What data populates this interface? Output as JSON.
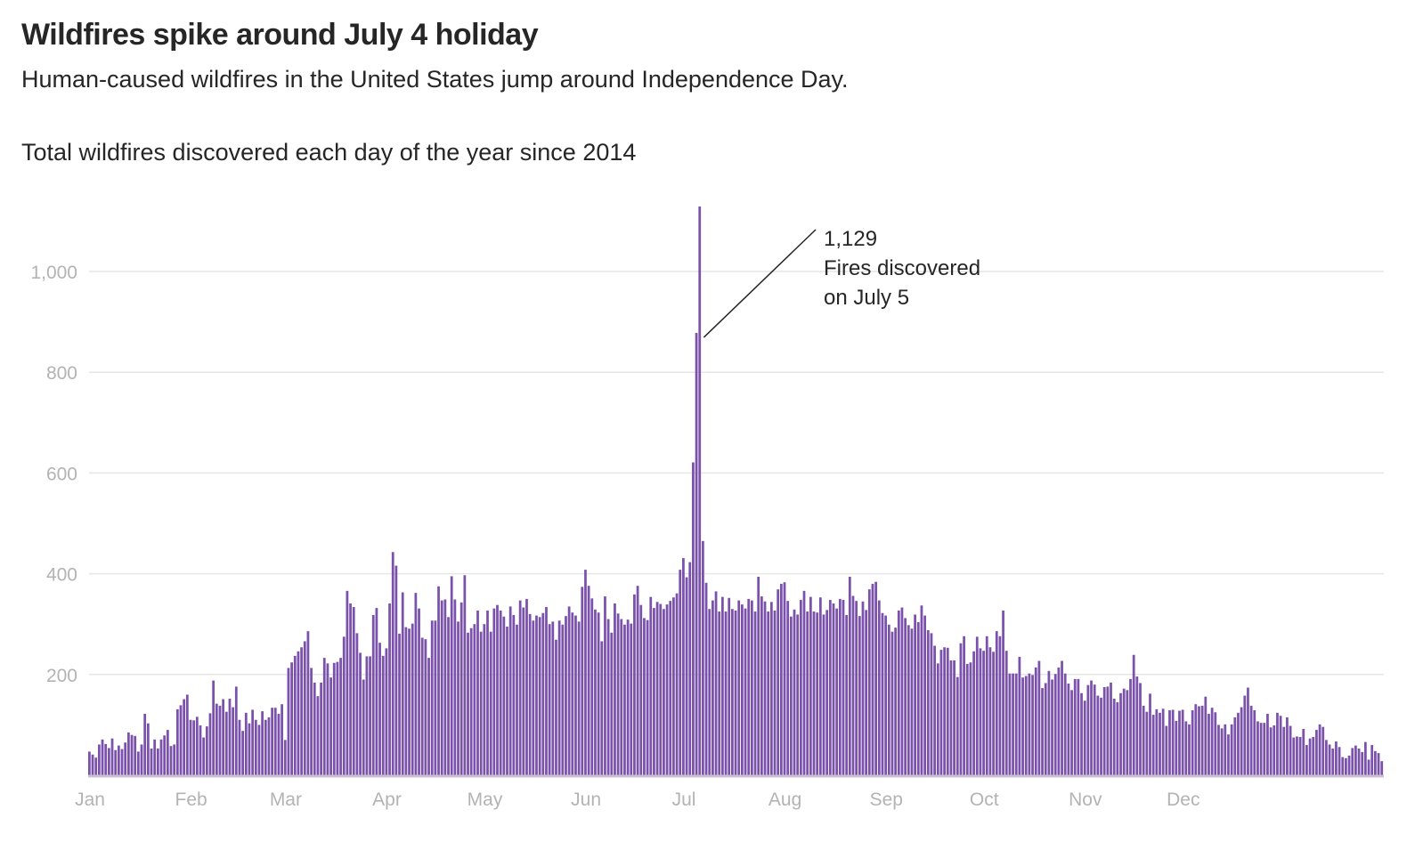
{
  "header": {
    "title": "Wildfires spike around July 4 holiday",
    "subtitle": "Human-caused wildfires in the United States jump around Independence Day."
  },
  "chart_data": {
    "type": "bar",
    "title": "Total wildfires discovered each day of the year since 2014",
    "xlabel": "",
    "ylabel": "",
    "ylim": [
      0,
      1129
    ],
    "y_ticks": [
      {
        "value": 200,
        "label": "200"
      },
      {
        "value": 400,
        "label": "400"
      },
      {
        "value": 600,
        "label": "600"
      },
      {
        "value": 800,
        "label": "800"
      },
      {
        "value": 1000,
        "label": "1,000"
      }
    ],
    "x_ticks": [
      {
        "day": 1,
        "label": "Jan"
      },
      {
        "day": 32,
        "label": "Feb"
      },
      {
        "day": 61,
        "label": "Mar"
      },
      {
        "day": 92,
        "label": "Apr"
      },
      {
        "day": 122,
        "label": "May"
      },
      {
        "day": 153,
        "label": "Jun"
      },
      {
        "day": 183,
        "label": "Jul"
      },
      {
        "day": 214,
        "label": "Aug"
      },
      {
        "day": 245,
        "label": "Sep"
      },
      {
        "day": 275,
        "label": "Oct"
      },
      {
        "day": 306,
        "label": "Nov"
      },
      {
        "day": 336,
        "label": "Dec"
      }
    ],
    "grid": true,
    "color": "#7b52ab",
    "annotation": {
      "day": 187,
      "value_label": "1,129",
      "line1": "Fires discovered",
      "line2": "on July 5"
    },
    "values": [
      47,
      41,
      35,
      61,
      71,
      62,
      54,
      73,
      50,
      59,
      52,
      65,
      85,
      80,
      78,
      47,
      61,
      122,
      103,
      53,
      71,
      53,
      71,
      79,
      90,
      58,
      61,
      131,
      139,
      151,
      160,
      110,
      109,
      116,
      99,
      75,
      97,
      123,
      188,
      142,
      138,
      151,
      126,
      152,
      135,
      176,
      110,
      88,
      124,
      103,
      130,
      110,
      100,
      127,
      110,
      115,
      134,
      134,
      122,
      141,
      70,
      213,
      224,
      237,
      246,
      254,
      266,
      286,
      213,
      184,
      157,
      184,
      233,
      222,
      194,
      223,
      225,
      233,
      275,
      366,
      341,
      334,
      282,
      243,
      190,
      236,
      236,
      318,
      332,
      263,
      237,
      252,
      341,
      443,
      416,
      281,
      363,
      294,
      291,
      301,
      362,
      331,
      273,
      270,
      233,
      307,
      307,
      375,
      347,
      349,
      314,
      395,
      349,
      305,
      343,
      397,
      283,
      292,
      300,
      327,
      285,
      300,
      327,
      285,
      331,
      338,
      327,
      315,
      295,
      335,
      318,
      299,
      347,
      333,
      350,
      320,
      307,
      317,
      314,
      322,
      334,
      300,
      305,
      269,
      307,
      299,
      316,
      335,
      323,
      317,
      305,
      374,
      408,
      376,
      351,
      329,
      323,
      266,
      355,
      310,
      283,
      341,
      321,
      310,
      299,
      309,
      301,
      359,
      376,
      338,
      312,
      308,
      354,
      332,
      344,
      340,
      330,
      339,
      346,
      353,
      361,
      408,
      431,
      393,
      423,
      621,
      878,
      1129,
      465,
      382,
      330,
      347,
      365,
      325,
      354,
      325,
      352,
      330,
      327,
      347,
      339,
      331,
      350,
      347,
      325,
      394,
      355,
      345,
      325,
      344,
      327,
      369,
      380,
      383,
      346,
      315,
      329,
      319,
      348,
      366,
      325,
      354,
      325,
      323,
      353,
      319,
      328,
      348,
      341,
      331,
      350,
      348,
      318,
      394,
      356,
      346,
      316,
      345,
      328,
      369,
      380,
      384,
      347,
      322,
      317,
      299,
      285,
      293,
      327,
      333,
      312,
      298,
      291,
      319,
      304,
      337,
      317,
      288,
      282,
      257,
      222,
      249,
      254,
      253,
      228,
      228,
      195,
      262,
      276,
      221,
      224,
      246,
      275,
      252,
      247,
      276,
      254,
      245,
      286,
      276,
      327,
      247,
      202,
      202,
      202,
      235,
      194,
      197,
      202,
      199,
      214,
      227,
      173,
      183,
      207,
      190,
      201,
      214,
      227,
      202,
      182,
      169,
      191,
      191,
      163,
      148,
      179,
      188,
      180,
      158,
      154,
      175,
      176,
      184,
      152,
      145,
      163,
      172,
      169,
      191,
      239,
      196,
      183,
      138,
      126,
      162,
      120,
      131,
      124,
      132,
      98,
      129,
      130,
      108,
      128,
      130,
      107,
      101,
      129,
      141,
      137,
      138,
      156,
      122,
      134,
      125,
      100,
      93,
      101,
      81,
      101,
      115,
      124,
      135,
      158,
      174,
      138,
      129,
      107,
      104,
      104,
      122,
      95,
      99,
      124,
      118,
      96,
      115,
      98,
      75,
      77,
      76,
      92,
      60,
      73,
      76,
      90,
      101,
      96,
      70,
      61,
      53,
      67,
      56,
      36,
      34,
      39,
      54,
      59,
      53,
      46,
      66,
      31,
      60,
      48,
      44,
      28
    ]
  }
}
